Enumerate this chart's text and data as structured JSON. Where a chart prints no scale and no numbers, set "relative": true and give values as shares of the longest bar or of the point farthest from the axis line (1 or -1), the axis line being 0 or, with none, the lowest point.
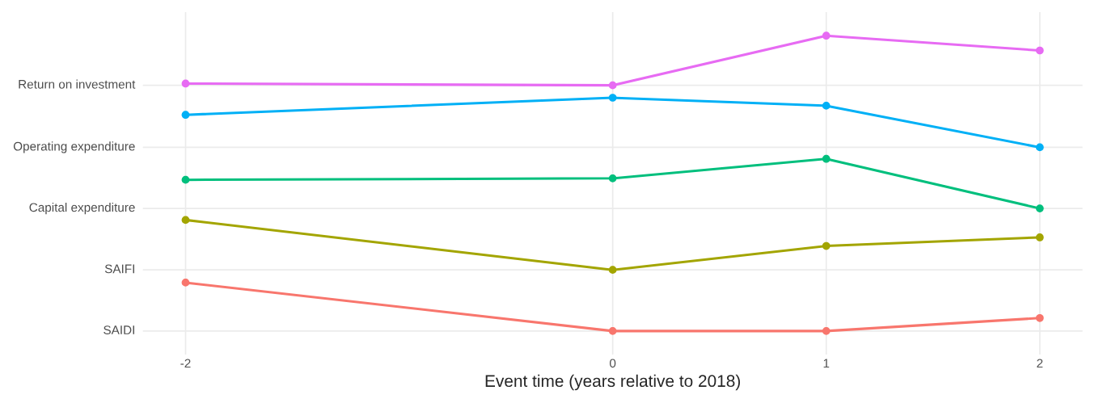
{
  "chart_data": {
    "type": "line",
    "xlabel": "Event time (years relative to 2018)",
    "x": [
      -2,
      0,
      1,
      2
    ],
    "relative": true,
    "series": [
      {
        "color": "#f8766d",
        "values": [
          0.164,
          0,
          0,
          0.044
        ]
      },
      {
        "color": "#a3a500",
        "values": [
          0.376,
          0.207,
          0.288,
          0.317
        ]
      },
      {
        "color": "#00bf7d",
        "values": [
          0.512,
          0.517,
          0.583,
          0.415
        ]
      },
      {
        "color": "#00b0f6",
        "values": [
          0.732,
          0.79,
          0.763,
          0.622
        ]
      },
      {
        "color": "#e76bf3",
        "values": [
          0.838,
          0.832,
          1,
          0.95
        ]
      }
    ],
    "xlim": [
      -2.2,
      2.2
    ],
    "xticks": [
      -2,
      0,
      1,
      2
    ],
    "annotations": [
      "SAIDI",
      "SAIFI",
      "Capital expenditure",
      "Operating expenditure",
      "Return on investment"
    ],
    "grid": "x",
    "marker": "circle",
    "line_style": "solid"
  }
}
